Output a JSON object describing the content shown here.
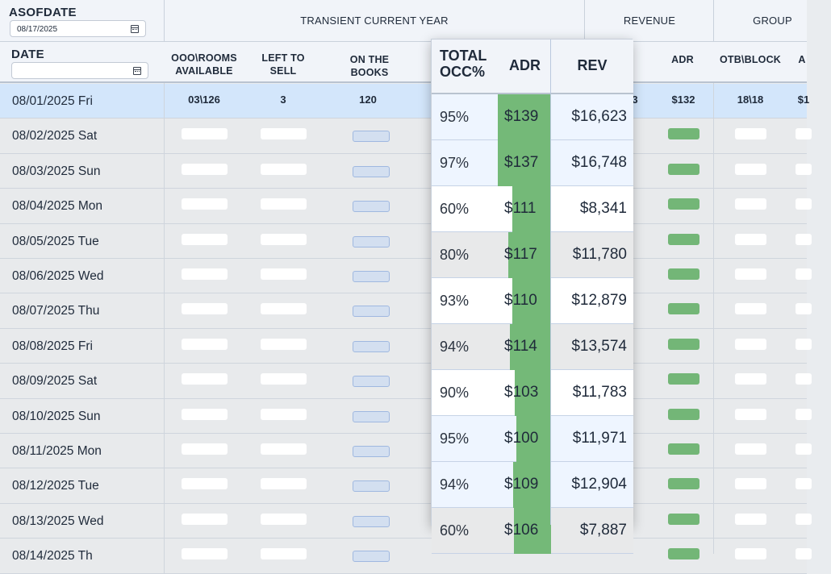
{
  "header": {
    "asofdate_label": "ASOFDATE",
    "asofdate_value": "08/17/2025",
    "date_label": "DATE",
    "date_value": "",
    "groups": {
      "transient": "TRANSIENT CURRENT YEAR",
      "revenue": "REVENUE",
      "group": "GROUP"
    },
    "columns": {
      "ooo_rooms_line1": "OOO\\ROOMS",
      "ooo_rooms_line2": "AVAILABLE",
      "left_line1": "LEFT TO",
      "left_line2": "SELL",
      "books_line1": "ON THE",
      "books_line2": "BOOKS",
      "adr": "ADR",
      "otb_block": "OTB\\BLOCK",
      "cut_off": "A"
    }
  },
  "rows": [
    {
      "date": "08/01/2025 Fri",
      "ooo": "03\\126",
      "left": "3",
      "books": "120",
      "rev_tail": "3",
      "adr": "$132",
      "otb": "18\\18",
      "tail": "$1"
    },
    {
      "date": "08/02/2025 Sat"
    },
    {
      "date": "08/03/2025 Sun"
    },
    {
      "date": "08/04/2025 Mon"
    },
    {
      "date": "08/05/2025 Tue"
    },
    {
      "date": "08/06/2025 Wed"
    },
    {
      "date": "08/07/2025 Thu"
    },
    {
      "date": "08/08/2025 Fri"
    },
    {
      "date": "08/09/2025 Sat"
    },
    {
      "date": "08/10/2025 Sun"
    },
    {
      "date": "08/11/2025 Mon"
    },
    {
      "date": "08/12/2025 Tue"
    },
    {
      "date": "08/13/2025 Wed"
    },
    {
      "date": "08/14/2025 Th"
    }
  ],
  "popup": {
    "headers": {
      "occ_line1": "TOTAL",
      "occ_line2": "OCC%",
      "adr": "ADR",
      "rev": "REV"
    },
    "rows": [
      {
        "occ": "95%",
        "adr": "$139",
        "rev": "$16,623",
        "adr_fill": 0.82
      },
      {
        "occ": "97%",
        "adr": "$137",
        "rev": "$16,748",
        "adr_fill": 0.82
      },
      {
        "occ": "60%",
        "adr": "$111",
        "rev": "$8,341",
        "adr_fill": 0.6
      },
      {
        "occ": "80%",
        "adr": "$117",
        "rev": "$11,780",
        "adr_fill": 0.66
      },
      {
        "occ": "93%",
        "adr": "$110",
        "rev": "$12,879",
        "adr_fill": 0.6
      },
      {
        "occ": "94%",
        "adr": "$114",
        "rev": "$13,574",
        "adr_fill": 0.64
      },
      {
        "occ": "90%",
        "adr": "$103",
        "rev": "$11,783",
        "adr_fill": 0.56
      },
      {
        "occ": "95%",
        "adr": "$100",
        "rev": "$11,971",
        "adr_fill": 0.54
      },
      {
        "occ": "94%",
        "adr": "$109",
        "rev": "$12,904",
        "adr_fill": 0.59
      },
      {
        "occ": "60%",
        "adr": "$106",
        "rev": "$7,887",
        "adr_fill": 0.57
      }
    ]
  },
  "colors": {
    "selected_row": "#d3e6fb",
    "adr_green": "#74b978",
    "header_bg": "#f1f4f9"
  }
}
